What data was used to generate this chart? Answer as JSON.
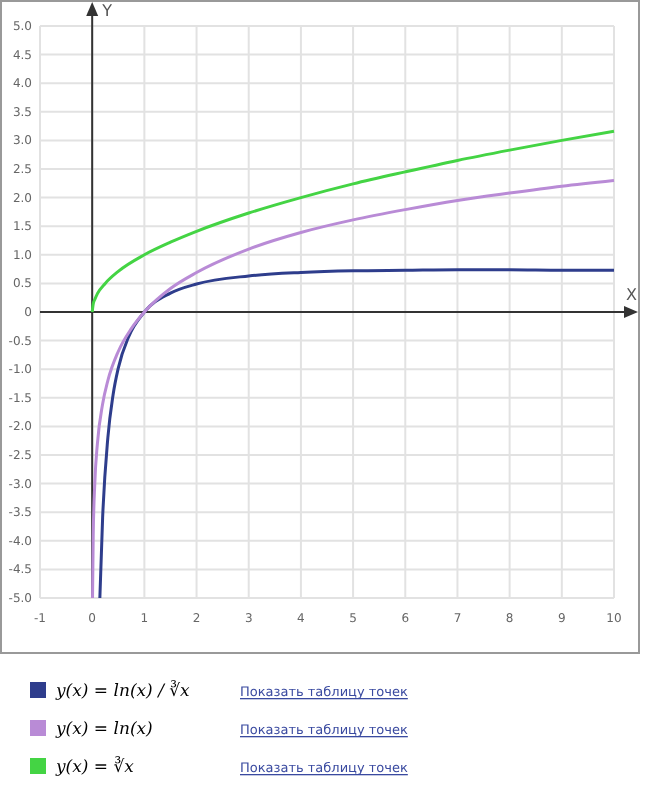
{
  "chart_data": {
    "type": "line",
    "xlabel": "X",
    "ylabel": "Y",
    "xlim": [
      -1,
      10
    ],
    "ylim": [
      -5,
      5
    ],
    "xticks": [
      -1,
      0,
      1,
      2,
      3,
      4,
      5,
      6,
      7,
      8,
      9,
      10
    ],
    "yticks": [
      {
        "value": -5,
        "label": "-5.0"
      },
      {
        "value": -4.5,
        "label": "-4.5"
      },
      {
        "value": -4,
        "label": "-4.0"
      },
      {
        "value": -3.5,
        "label": "-3.5"
      },
      {
        "value": -3,
        "label": "-3.0"
      },
      {
        "value": -2.5,
        "label": "-2.5"
      },
      {
        "value": -2,
        "label": "-2.0"
      },
      {
        "value": -1.5,
        "label": "-1.5"
      },
      {
        "value": -1,
        "label": "-1.0"
      },
      {
        "value": -0.5,
        "label": "-0.5"
      },
      0,
      {
        "value": 0.5,
        "label": "0.5"
      },
      {
        "value": 1,
        "label": "1.0"
      },
      {
        "value": 1.5,
        "label": "1.5"
      },
      {
        "value": 2,
        "label": "2.0"
      },
      {
        "value": 2.5,
        "label": "2.5"
      },
      {
        "value": 3,
        "label": "3.0"
      },
      {
        "value": 3.5,
        "label": "3.5"
      },
      {
        "value": 4,
        "label": "4.0"
      },
      {
        "value": 4.5,
        "label": "4.5"
      },
      {
        "value": 5,
        "label": "5.0"
      }
    ],
    "grid": true,
    "legend": "bottom",
    "marker": "none",
    "line_style": "solid",
    "series": [
      {
        "name": "y(x) = ln(x) / ∛x",
        "color": "#2e3d8c",
        "x": [
          0.147,
          0.2,
          0.3,
          0.4,
          0.5,
          0.7,
          1,
          1.5,
          2,
          3,
          4,
          5,
          6,
          7,
          8,
          9,
          10
        ],
        "values": [
          -5,
          -3.6,
          -2.2,
          -1.45,
          -0.98,
          -0.43,
          0,
          0.33,
          0.49,
          0.63,
          0.69,
          0.72,
          0.73,
          0.74,
          0.74,
          0.73,
          0.73
        ]
      },
      {
        "name": "y(x) = ln(x)",
        "color": "#b98bd6",
        "x": [
          0.0067,
          0.02,
          0.05,
          0.1,
          0.2,
          0.3,
          0.5,
          0.75,
          1,
          1.5,
          2,
          3,
          4,
          5,
          6,
          7,
          8,
          9,
          10
        ],
        "values": [
          -5,
          -3.91,
          -3,
          -2.3,
          -1.61,
          -1.2,
          -0.69,
          -0.29,
          0,
          0.41,
          0.69,
          1.1,
          1.39,
          1.61,
          1.79,
          1.95,
          2.08,
          2.2,
          2.3
        ]
      },
      {
        "name": "y(x) = ∛x",
        "color": "#44d444",
        "x": [
          0,
          0.02,
          0.05,
          0.1,
          0.25,
          0.5,
          1,
          1.5,
          2,
          3,
          4,
          5,
          6,
          7,
          8,
          9,
          10
        ],
        "values": [
          0,
          0.14,
          0.22,
          0.32,
          0.5,
          0.71,
          1,
          1.22,
          1.41,
          1.73,
          2,
          2.24,
          2.45,
          2.65,
          2.83,
          3,
          3.16
        ]
      }
    ],
    "annotations": [
      "Показать таблицу точек",
      "Показать таблицу точек",
      "Показать таблицу точек"
    ]
  }
}
